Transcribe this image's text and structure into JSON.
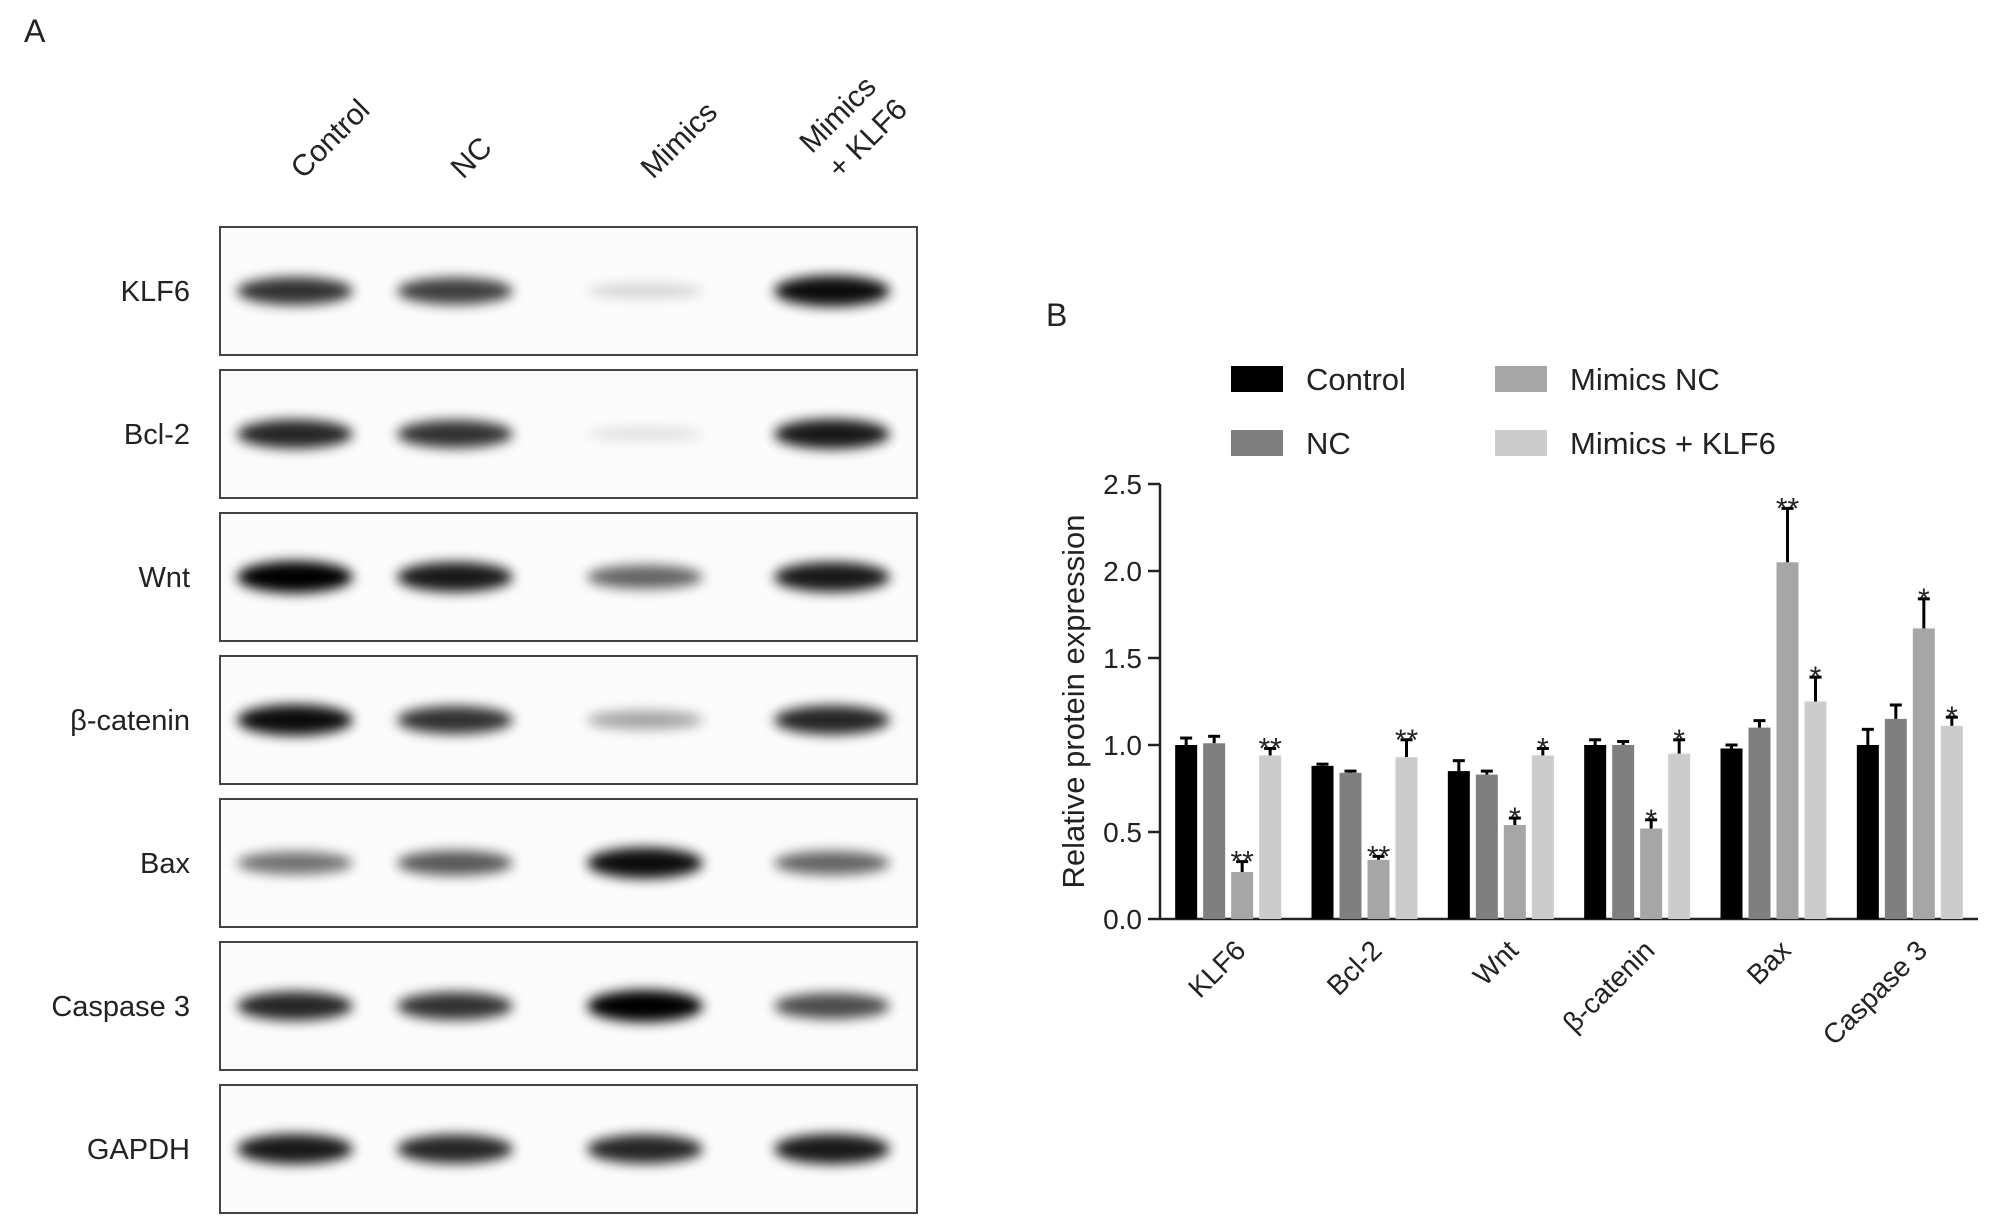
{
  "panel_a": {
    "label": "A",
    "lanes": [
      [
        "Control"
      ],
      [
        "NC"
      ],
      [
        "Mimics"
      ],
      [
        "Mimics",
        "+ KLF6"
      ]
    ],
    "rows": [
      "KLF6",
      "Bcl-2",
      "Wnt",
      "β-catenin",
      "Bax",
      "Caspase 3",
      "GAPDH"
    ]
  },
  "panel_b": {
    "label": "B"
  },
  "chart_data": {
    "type": "bar",
    "ylabel": "Relative protein expression",
    "categories": [
      "KLF6",
      "Bcl-2",
      "Wnt",
      "β-catenin",
      "Bax",
      "Caspase 3"
    ],
    "series": [
      {
        "name": "Control",
        "color": "#000000",
        "values": [
          1.0,
          0.88,
          0.85,
          1.0,
          0.98,
          1.0
        ],
        "errors": [
          0.04,
          0.01,
          0.06,
          0.03,
          0.02,
          0.09
        ]
      },
      {
        "name": "NC",
        "color": "#7f7f7f",
        "values": [
          1.01,
          0.84,
          0.83,
          1.0,
          1.1,
          1.15
        ],
        "errors": [
          0.04,
          0.01,
          0.02,
          0.02,
          0.04,
          0.08
        ]
      },
      {
        "name": "Mimics NC",
        "color": "#a6a6a6",
        "values": [
          0.27,
          0.34,
          0.54,
          0.52,
          2.05,
          1.67
        ],
        "errors": [
          0.06,
          0.02,
          0.04,
          0.05,
          0.31,
          0.17
        ],
        "annotations": [
          "**",
          "**",
          "*",
          "*",
          "**",
          "*"
        ]
      },
      {
        "name": "Mimics + KLF6",
        "color": "#cccccc",
        "values": [
          0.94,
          0.93,
          0.94,
          0.95,
          1.25,
          1.11
        ],
        "errors": [
          0.04,
          0.1,
          0.04,
          0.08,
          0.14,
          0.05
        ],
        "annotations": [
          "**",
          "**",
          "*",
          "*",
          "*",
          "*"
        ]
      }
    ],
    "ylim": [
      0,
      2.5
    ],
    "yticks": [
      {
        "value": 0,
        "label": "0.0"
      },
      0.5,
      {
        "value": 1,
        "label": "1.0"
      },
      1.5,
      {
        "value": 2,
        "label": "2.0"
      },
      2.5
    ],
    "legend": "top",
    "grid": false
  }
}
